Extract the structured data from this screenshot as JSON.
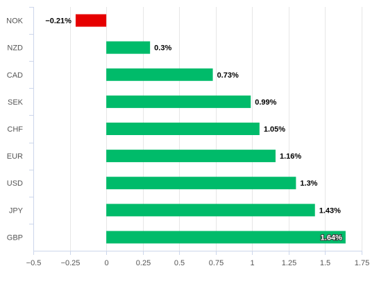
{
  "chart_data": {
    "type": "bar",
    "orientation": "horizontal",
    "categories": [
      "NOK",
      "NZD",
      "CAD",
      "SEK",
      "CHF",
      "EUR",
      "USD",
      "JPY",
      "GBP"
    ],
    "values": [
      -0.21,
      0.3,
      0.73,
      0.99,
      1.05,
      1.16,
      1.3,
      1.43,
      1.64
    ],
    "data_labels": [
      "−0.21%",
      "0.3%",
      "0.73%",
      "0.99%",
      "1.05%",
      "1.16%",
      "1.3%",
      "1.43%",
      "1.64%"
    ],
    "xlim": [
      -0.5,
      1.75
    ],
    "xticks": [
      -0.5,
      -0.25,
      0,
      0.25,
      0.5,
      0.75,
      1,
      1.25,
      1.5,
      1.75
    ],
    "xtick_labels": [
      "−0.5",
      "−0.25",
      "0",
      "0.25",
      "0.5",
      "0.75",
      "1",
      "1.25",
      "1.5",
      "1.75"
    ],
    "grid": true,
    "title": "",
    "xlabel": "",
    "ylabel": "",
    "colors": {
      "positive": "#00bb6a",
      "negative": "#e60000",
      "grid": "#e6e6e6",
      "axis": "#ccd6eb"
    }
  }
}
